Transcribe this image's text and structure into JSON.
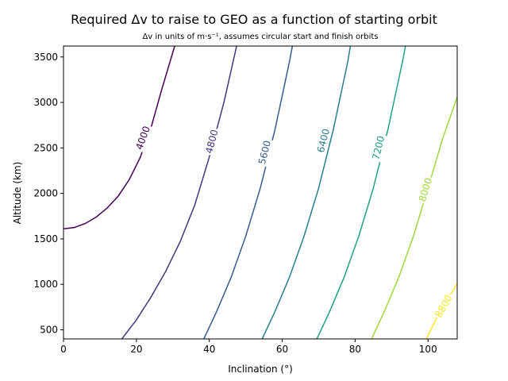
{
  "chart_data": {
    "type": "contour",
    "title": "Required Δv to raise to GEO as a function of starting orbit",
    "subtitle": "Δv in units of m·s⁻¹, assumes circular start and finish orbits",
    "xlabel": "Inclination (°)",
    "ylabel": "Altitude (km)",
    "xlim": [
      0,
      108
    ],
    "ylim": [
      400,
      3620
    ],
    "x_ticks": [
      0,
      20,
      40,
      60,
      80,
      100
    ],
    "y_ticks": [
      500,
      1000,
      1500,
      2000,
      2500,
      3000,
      3500
    ],
    "grid": false,
    "levels": [
      {
        "level": 4000,
        "label": "4000",
        "color": "#440154",
        "points": [
          [
            0,
            1610
          ],
          [
            3,
            1625
          ],
          [
            6,
            1670
          ],
          [
            9,
            1740
          ],
          [
            12,
            1840
          ],
          [
            15,
            1970
          ],
          [
            18,
            2150
          ],
          [
            21,
            2390
          ],
          [
            24,
            2720
          ],
          [
            27,
            3150
          ],
          [
            30.5,
            3620
          ]
        ],
        "label_at": [
          21.8,
          2610
        ]
      },
      {
        "level": 4800,
        "label": "4800",
        "color": "#46337e",
        "points": [
          [
            16,
            400
          ],
          [
            20,
            610
          ],
          [
            24,
            860
          ],
          [
            28,
            1140
          ],
          [
            32,
            1470
          ],
          [
            36,
            1870
          ],
          [
            40,
            2400
          ],
          [
            44,
            3000
          ],
          [
            47.5,
            3620
          ]
        ],
        "label_at": [
          40.7,
          2570
        ]
      },
      {
        "level": 5600,
        "label": "5600",
        "color": "#365c8d",
        "points": [
          [
            38.5,
            400
          ],
          [
            42,
            700
          ],
          [
            46,
            1080
          ],
          [
            50,
            1530
          ],
          [
            54,
            2060
          ],
          [
            58,
            2700
          ],
          [
            62,
            3450
          ],
          [
            62.8,
            3620
          ]
        ],
        "label_at": [
          55.2,
          2450
        ]
      },
      {
        "level": 6400,
        "label": "6400",
        "color": "#277f8e",
        "points": [
          [
            54.5,
            400
          ],
          [
            58,
            700
          ],
          [
            62,
            1080
          ],
          [
            66,
            1530
          ],
          [
            70,
            2060
          ],
          [
            74,
            2700
          ],
          [
            78,
            3450
          ],
          [
            78.7,
            3620
          ]
        ],
        "label_at": [
          71.3,
          2580
        ]
      },
      {
        "level": 7200,
        "label": "7200",
        "color": "#1fa187",
        "points": [
          [
            69.5,
            400
          ],
          [
            73,
            700
          ],
          [
            77,
            1080
          ],
          [
            81,
            1530
          ],
          [
            85,
            2060
          ],
          [
            89,
            2700
          ],
          [
            93,
            3450
          ],
          [
            93.8,
            3620
          ]
        ],
        "label_at": [
          86.4,
          2500
        ]
      },
      {
        "level": 8000,
        "label": "8000",
        "color": "#9fda3a",
        "points": [
          [
            84.5,
            400
          ],
          [
            88,
            700
          ],
          [
            92,
            1080
          ],
          [
            96,
            1530
          ],
          [
            100,
            2060
          ],
          [
            104,
            2600
          ],
          [
            108,
            3060
          ]
        ],
        "label_at": [
          99.3,
          2040
        ]
      },
      {
        "level": 8800,
        "label": "8800",
        "color": "#fde725",
        "points": [
          [
            99.5,
            400
          ],
          [
            102,
            600
          ],
          [
            105,
            810
          ],
          [
            108,
            1010
          ]
        ],
        "label_at": [
          104.3,
          760
        ]
      }
    ]
  }
}
